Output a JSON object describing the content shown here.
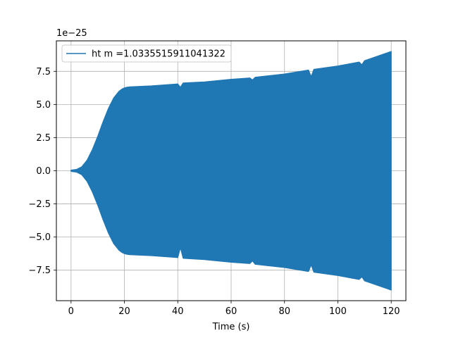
{
  "chart_data": {
    "type": "area",
    "title": "",
    "xlabel": "Time (s)",
    "ylabel": "",
    "y_multiplier_label": "1e−25",
    "xlim": [
      -5.5,
      125.5
    ],
    "ylim": [
      -9.8,
      9.8
    ],
    "x_ticks": [
      0,
      20,
      40,
      60,
      80,
      100,
      120
    ],
    "x_tick_labels": [
      "0",
      "20",
      "40",
      "60",
      "80",
      "100",
      "120"
    ],
    "y_ticks": [
      -7.5,
      -5.0,
      -2.5,
      0.0,
      2.5,
      5.0,
      7.5
    ],
    "y_tick_labels": [
      "−7.5",
      "−5.0",
      "−2.5",
      "0.0",
      "2.5",
      "5.0",
      "7.5"
    ],
    "grid": true,
    "legend_position": "upper-left",
    "series": [
      {
        "name": "ht m =1.0335515911041322",
        "color": "#1f77b4",
        "envelope": {
          "x": [
            0,
            2,
            4,
            6,
            8,
            10,
            12,
            14,
            16,
            18,
            19,
            20,
            21,
            22,
            30,
            40,
            41,
            42,
            50,
            60,
            67,
            68,
            69,
            80,
            89,
            90,
            91,
            100,
            108,
            109,
            110,
            120
          ],
          "upper": [
            0.05,
            0.1,
            0.3,
            0.8,
            1.6,
            2.6,
            3.7,
            4.7,
            5.5,
            6.0,
            6.15,
            6.25,
            6.3,
            6.33,
            6.4,
            6.55,
            6.3,
            6.62,
            6.7,
            6.9,
            7.0,
            6.85,
            7.05,
            7.3,
            7.6,
            7.1,
            7.65,
            7.9,
            8.2,
            8.0,
            8.3,
            9.0
          ],
          "lower": [
            -0.05,
            -0.1,
            -0.3,
            -0.8,
            -1.6,
            -2.6,
            -3.7,
            -4.7,
            -5.5,
            -6.0,
            -6.15,
            -6.25,
            -6.3,
            -6.33,
            -6.4,
            -6.55,
            -5.8,
            -6.6,
            -6.7,
            -6.9,
            -7.0,
            -6.8,
            -7.05,
            -7.3,
            -7.6,
            -7.1,
            -7.65,
            -7.9,
            -8.2,
            -8.0,
            -8.3,
            -9.0
          ]
        }
      }
    ]
  }
}
